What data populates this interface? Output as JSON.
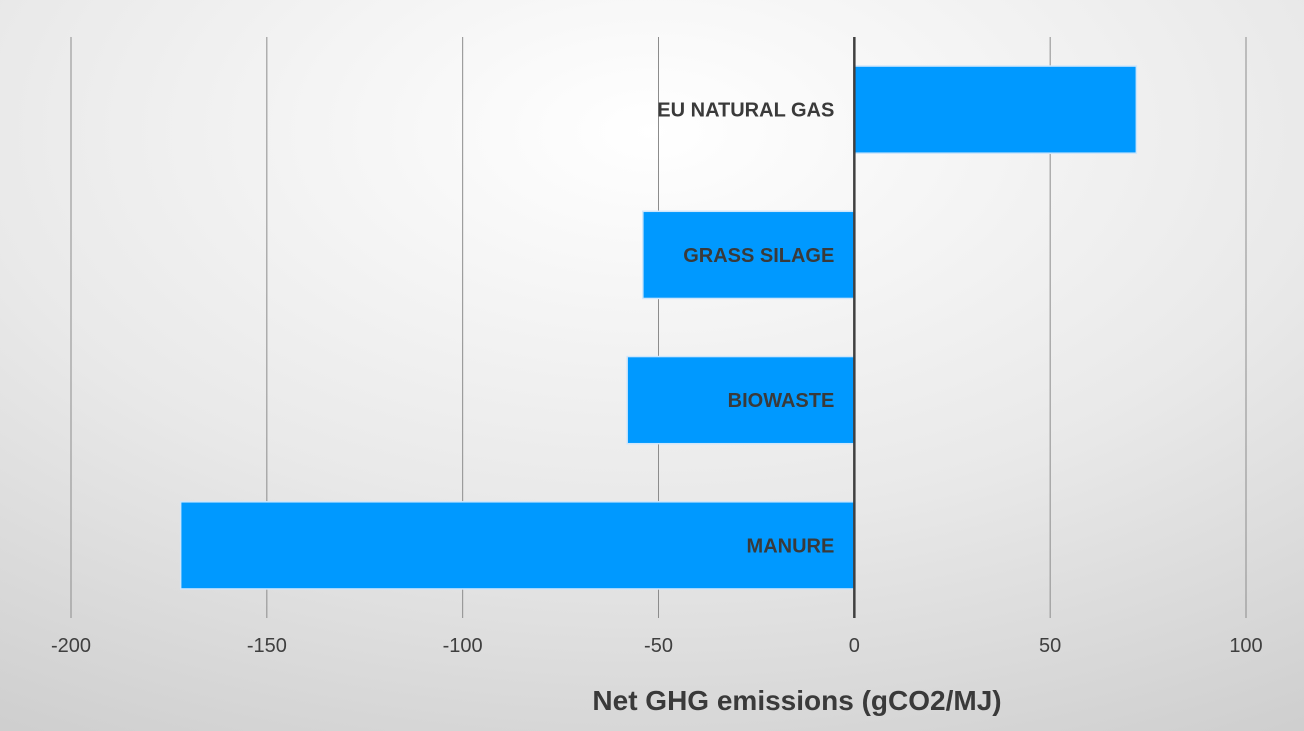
{
  "chart_data": {
    "type": "bar",
    "orientation": "horizontal",
    "categories": [
      "EU NATURAL GAS",
      "GRASS SILAGE",
      "BIOWASTE",
      "MANURE"
    ],
    "values": [
      72,
      -54,
      -58,
      -172
    ],
    "title": "",
    "xlabel": "Net GHG emissions (gCO2/MJ)",
    "ylabel": "",
    "xlim": [
      -200,
      100
    ],
    "xticks": [
      -200,
      -150,
      -100,
      -50,
      0,
      50,
      100
    ],
    "xtick_labels": [
      "-200",
      "-150",
      "-100",
      "-50",
      "0",
      "50",
      "100"
    ],
    "grid": "vertical",
    "legend": "none",
    "colors": {
      "bar": "#0099ff",
      "bar_edge": "#cfe6fb",
      "gridline": "#8c8c8c",
      "zero_axis": "#404040",
      "background_light": "#ffffff",
      "background_dark": "#d2d2d2"
    }
  }
}
